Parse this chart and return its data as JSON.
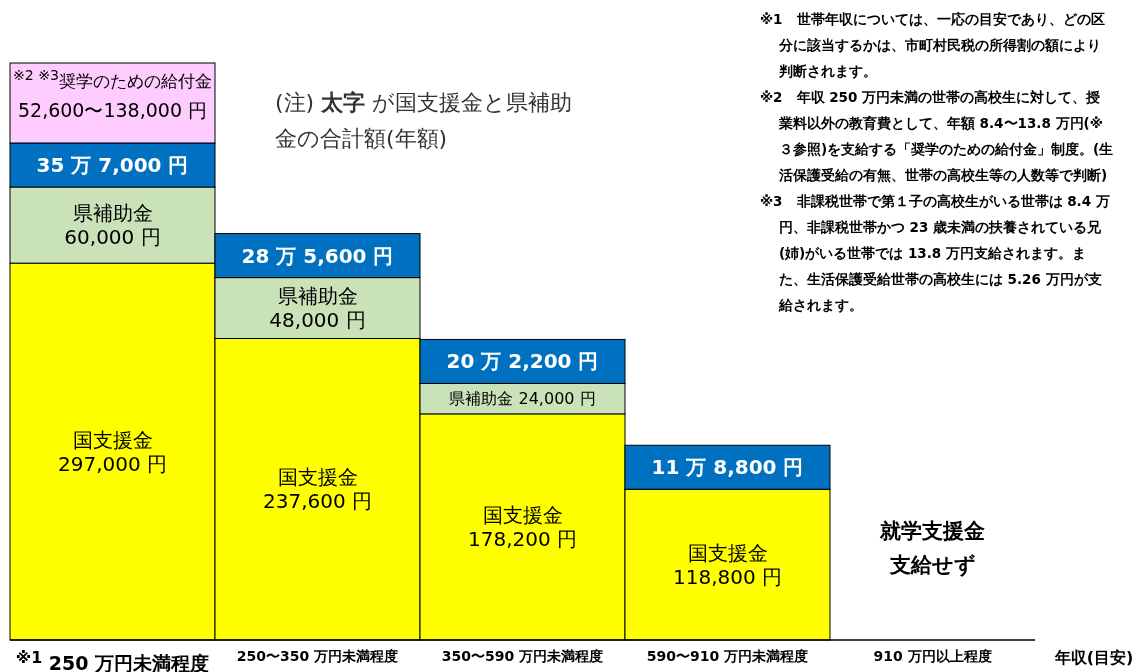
{
  "chart_data": {
    "type": "bar",
    "stacked": true,
    "categories": [
      "$^{※1}$ 250 万円未満程度",
      "250〜350 万円未満程度",
      "350〜590 万円未満程度",
      "590〜910 万円未満程度",
      "910 万円以上程度"
    ],
    "series": [
      {
        "name": "国支援金",
        "color": "#ffff00",
        "values": [
          297000,
          237600,
          178200,
          118800,
          null
        ],
        "value_labels": [
          "297,000 円",
          "237,600 円",
          "178,200 円",
          "118,800 円",
          null
        ]
      },
      {
        "name": "県補助金",
        "color": "#c9e2b8",
        "values": [
          60000,
          48000,
          24000,
          null,
          null
        ],
        "value_labels": [
          "60,000 円",
          "48,000 円",
          "24,000 円",
          null,
          null
        ]
      }
    ],
    "totals": [
      "35 万 7,000 円",
      "28 万 5,600 円",
      "20 万 2,200 円",
      "11 万 8,800 円",
      null
    ],
    "xlabel": "年収(目安)",
    "annotations": [
      "$^{※2 ※3}$奨学のための給付金",
      "52,600〜138,000 円",
      "就学支援金支給せず",
      "(注) **太字** が国支援金と県補助金の合計額(年額)",
      "※1　世帯年収については、一応の目安であり、どの区分に該当するかは、市町村民税の所得割の額により判断されます。",
      "※2　年収 250 万円未満の世帯の高校生に対して、授業料以外の教育費として、年額 8.4〜13.8 万円(※３参照)を支給する「奨学のための給付金」制度。(生活保護受給の有無、世帯の高校生等の人数等で判断)",
      "※3　非課税世帯で第１子の高校生がいる世帯は 8.4 万円、非課税世帯かつ 23 歳未満の扶養されている兄(姉)がいる世帯では 13.8 万円支給されます。また、生活保護受給世帯の高校生には 5.26 万円が支給されます。"
    ]
  }
}
